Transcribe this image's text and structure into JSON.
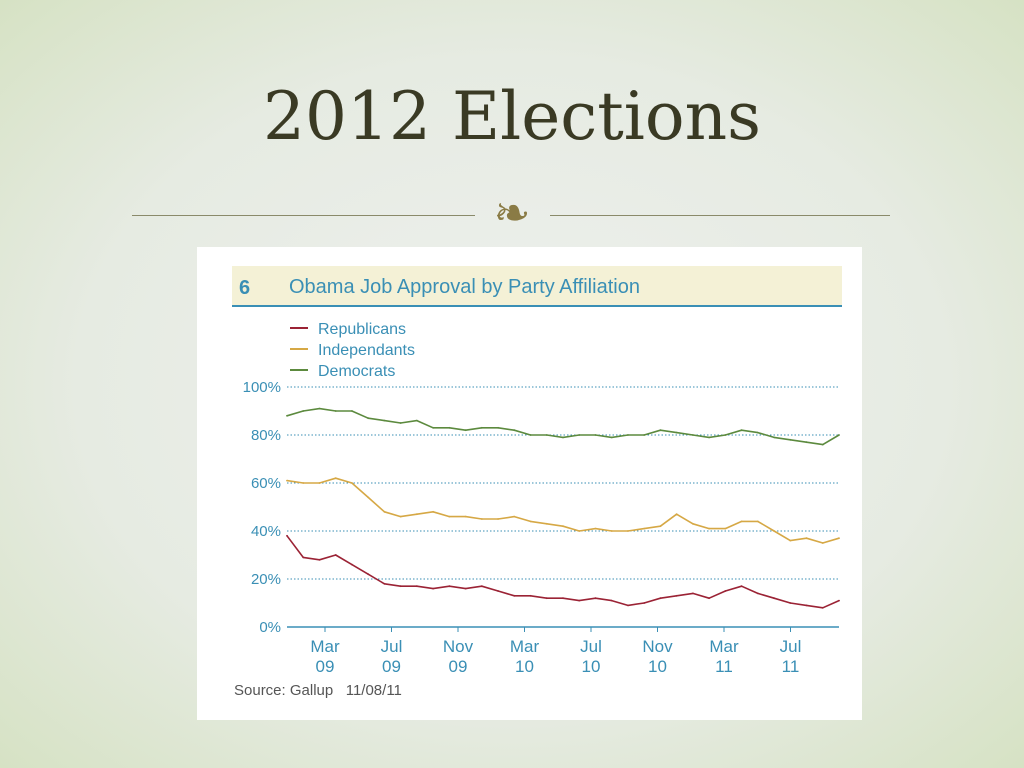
{
  "slide": {
    "title": "2012 Elections",
    "ornament": "❧"
  },
  "colors": {
    "title_text": "#3a3a24",
    "chart_blue": "#3a8fb5",
    "header_band": "#f4f1d6",
    "republicans": "#9b2335",
    "independants": "#d6a845",
    "democrats": "#5c8a3e"
  },
  "chart_header": {
    "number": "6",
    "title": "Obama Job Approval by Party Affiliation"
  },
  "source_text": "Source: Gallup   11/08/11",
  "chart_data": {
    "type": "line",
    "title": "Obama Job Approval by Party Affiliation",
    "xlabel": "",
    "ylabel": "",
    "ylim": [
      0,
      100
    ],
    "yticks": [
      "0%",
      "20%",
      "40%",
      "60%",
      "80%",
      "100%"
    ],
    "grid": true,
    "legend_position": "top-left",
    "x_tick_labels": [
      {
        "line1": "Mar",
        "line2": "09"
      },
      {
        "line1": "Jul",
        "line2": "09"
      },
      {
        "line1": "Nov",
        "line2": "09"
      },
      {
        "line1": "Mar",
        "line2": "10"
      },
      {
        "line1": "Jul",
        "line2": "10"
      },
      {
        "line1": "Nov",
        "line2": "10"
      },
      {
        "line1": "Mar",
        "line2": "11"
      },
      {
        "line1": "Jul",
        "line2": "11"
      }
    ],
    "x": [
      "2009-01",
      "2009-02",
      "2009-03",
      "2009-04",
      "2009-05",
      "2009-06",
      "2009-07",
      "2009-08",
      "2009-09",
      "2009-10",
      "2009-11",
      "2009-12",
      "2010-01",
      "2010-02",
      "2010-03",
      "2010-04",
      "2010-05",
      "2010-06",
      "2010-07",
      "2010-08",
      "2010-09",
      "2010-10",
      "2010-11",
      "2010-12",
      "2011-01",
      "2011-02",
      "2011-03",
      "2011-04",
      "2011-05",
      "2011-06",
      "2011-07",
      "2011-08",
      "2011-09",
      "2011-10",
      "2011-11"
    ],
    "series": [
      {
        "name": "Republicans",
        "color": "#9b2335",
        "values": [
          38,
          29,
          28,
          30,
          26,
          22,
          18,
          17,
          17,
          16,
          17,
          16,
          17,
          15,
          13,
          13,
          12,
          12,
          11,
          12,
          11,
          9,
          10,
          12,
          13,
          14,
          12,
          15,
          17,
          14,
          12,
          10,
          9,
          8,
          11
        ]
      },
      {
        "name": "Independants",
        "color": "#d6a845",
        "values": [
          61,
          60,
          60,
          62,
          60,
          54,
          48,
          46,
          47,
          48,
          46,
          46,
          45,
          45,
          46,
          44,
          43,
          42,
          40,
          41,
          40,
          40,
          41,
          42,
          47,
          43,
          41,
          41,
          44,
          44,
          40,
          36,
          37,
          35,
          37
        ]
      },
      {
        "name": "Democrats",
        "color": "#5c8a3e",
        "values": [
          88,
          90,
          91,
          90,
          90,
          87,
          86,
          85,
          86,
          83,
          83,
          82,
          83,
          83,
          82,
          80,
          80,
          79,
          80,
          80,
          79,
          80,
          80,
          82,
          81,
          80,
          79,
          80,
          82,
          81,
          79,
          78,
          77,
          76,
          80
        ]
      }
    ]
  }
}
